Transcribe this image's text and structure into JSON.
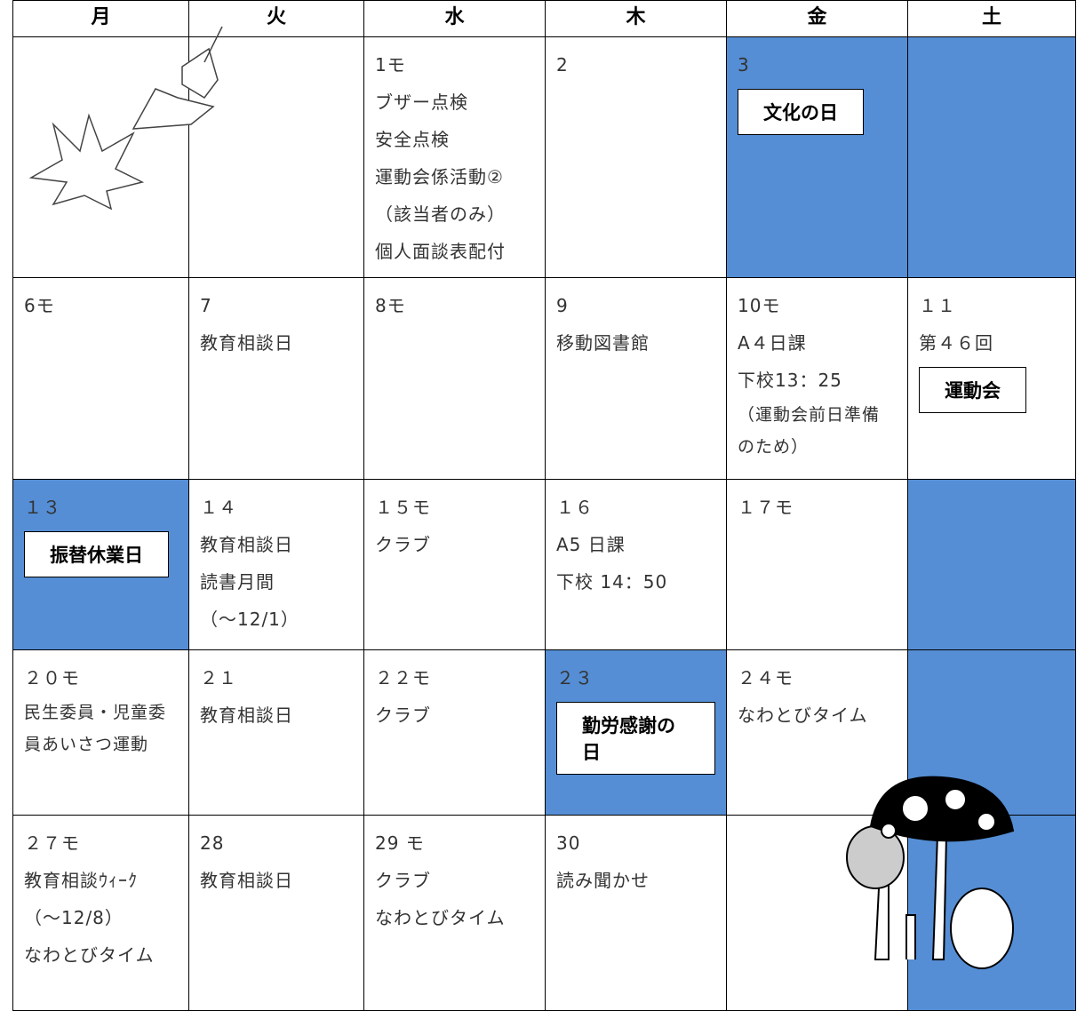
{
  "header": {
    "days": [
      "月",
      "火",
      "水",
      "木",
      "金",
      "土"
    ]
  },
  "shade_color": "#558ed5",
  "rows": [
    [
      {
        "lines": []
      },
      {
        "lines": []
      },
      {
        "lines": [
          "1モ",
          "ブザー点検",
          "安全点検",
          "運動会係活動②",
          "（該当者のみ）",
          "個人面談表配付"
        ]
      },
      {
        "lines": [
          "2"
        ]
      },
      {
        "lines": [
          "3"
        ],
        "box": "文化の日",
        "shaded": true
      },
      {
        "lines": [],
        "shaded": true
      }
    ],
    [
      {
        "lines": [
          "6モ"
        ]
      },
      {
        "lines": [
          "7",
          "教育相談日"
        ]
      },
      {
        "lines": [
          "8モ"
        ]
      },
      {
        "lines": [
          "9",
          "移動図書館"
        ]
      },
      {
        "lines": [
          "10モ",
          "A４日課",
          "下校13：25",
          "（運動会前日準備のため）"
        ]
      },
      {
        "lines": [
          "１１",
          "第４６回"
        ],
        "box": "運動会"
      }
    ],
    [
      {
        "lines": [
          "１３"
        ],
        "box": "振替休業日",
        "shaded": true
      },
      {
        "lines": [
          "１４",
          "教育相談日",
          "読書月間",
          "（～12/1）"
        ]
      },
      {
        "lines": [
          "１５モ",
          "クラブ"
        ]
      },
      {
        "lines": [
          "１６",
          "A5 日課",
          "下校 14：50"
        ]
      },
      {
        "lines": [
          "１７モ"
        ]
      },
      {
        "lines": [],
        "shaded": true
      }
    ],
    [
      {
        "lines": [
          "２０モ",
          "民生委員・児童委員あいさつ運動"
        ]
      },
      {
        "lines": [
          "２１",
          "教育相談日"
        ]
      },
      {
        "lines": [
          "２２モ",
          "クラブ"
        ]
      },
      {
        "lines": [
          "２３"
        ],
        "box": "勤労感謝の日",
        "shaded": true
      },
      {
        "lines": [
          "２４モ",
          "なわとびタイム"
        ]
      },
      {
        "lines": [],
        "shaded": true
      }
    ],
    [
      {
        "lines": [
          "２７モ",
          "教育相談ｳｨｰｸ",
          "（～12/8）",
          "なわとびタイム"
        ]
      },
      {
        "lines": [
          "28",
          "教育相談日"
        ]
      },
      {
        "lines": [
          "29 モ",
          "クラブ",
          "なわとびタイム"
        ]
      },
      {
        "lines": [
          "30",
          "読み聞かせ"
        ]
      },
      {
        "lines": []
      },
      {
        "lines": [],
        "shaded": true
      }
    ]
  ]
}
